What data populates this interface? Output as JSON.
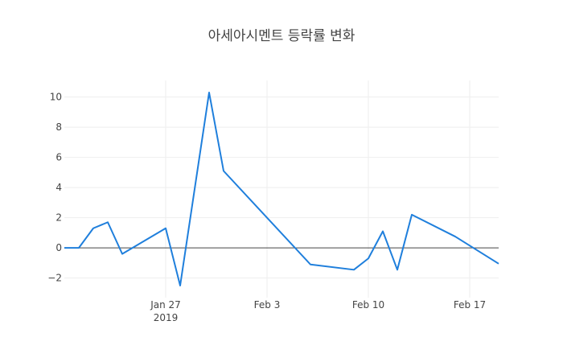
{
  "chart_data": {
    "type": "line",
    "title": "아세아시멘트 등락률 변화",
    "xlabel": "",
    "ylabel": "",
    "x_range": [
      "2019-01-20",
      "2019-02-19"
    ],
    "ylim": [
      -3.3,
      11.1
    ],
    "grid": true,
    "zero_line": true,
    "legend": "none",
    "line_color": "#1f7fdc",
    "x_ticks": [
      {
        "date": "2019-01-27",
        "label": "Jan 27",
        "sublabel": "2019"
      },
      {
        "date": "2019-02-03",
        "label": "Feb 3",
        "sublabel": ""
      },
      {
        "date": "2019-02-10",
        "label": "Feb 10",
        "sublabel": ""
      },
      {
        "date": "2019-02-17",
        "label": "Feb 17",
        "sublabel": ""
      }
    ],
    "y_ticks": [
      {
        "value": -2,
        "label": "−2"
      },
      {
        "value": 0,
        "label": "0"
      },
      {
        "value": 2,
        "label": "2"
      },
      {
        "value": 4,
        "label": "4"
      },
      {
        "value": 6,
        "label": "6"
      },
      {
        "value": 8,
        "label": "8"
      },
      {
        "value": 10,
        "label": "10"
      }
    ],
    "series": [
      {
        "x": [
          "2019-01-20",
          "2019-01-21",
          "2019-01-22",
          "2019-01-23",
          "2019-01-24",
          "2019-01-27",
          "2019-01-28",
          "2019-01-30",
          "2019-01-31",
          "2019-02-06",
          "2019-02-09",
          "2019-02-10",
          "2019-02-11",
          "2019-02-12",
          "2019-02-13",
          "2019-02-16",
          "2019-02-19"
        ],
        "values": [
          0,
          0,
          1.3,
          1.7,
          -0.4,
          1.3,
          -2.5,
          10.3,
          5.1,
          -1.1,
          -1.45,
          -0.7,
          1.1,
          -1.45,
          2.2,
          0.75,
          -1.05
        ]
      }
    ]
  }
}
